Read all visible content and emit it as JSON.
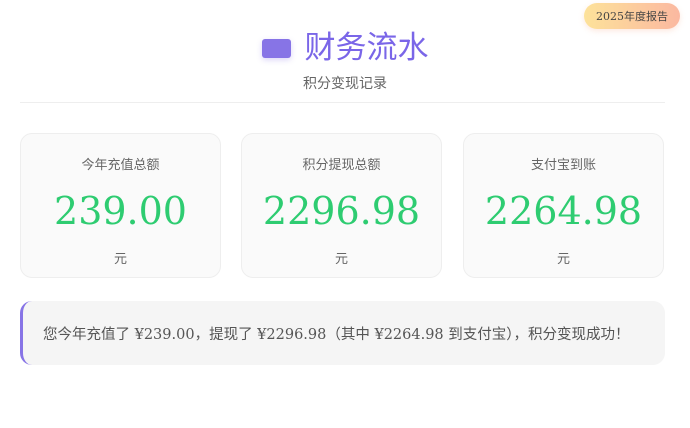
{
  "badge": "2025年度报告",
  "header": {
    "icon": "purple-rectangle-icon",
    "title": "财务流水",
    "subtitle": "积分变现记录"
  },
  "cards": [
    {
      "label": "今年充值总额",
      "value": "239.00",
      "unit": "元"
    },
    {
      "label": "积分提现总额",
      "value": "2296.98",
      "unit": "元"
    },
    {
      "label": "支付宝到账",
      "value": "2264.98",
      "unit": "元"
    }
  ],
  "summary": "您今年充值了 ¥239.00，提现了 ¥2296.98（其中 ¥2264.98 到支付宝），积分变现成功！",
  "colors": {
    "accent": "#7a66e8",
    "value": "#2ecc71"
  }
}
